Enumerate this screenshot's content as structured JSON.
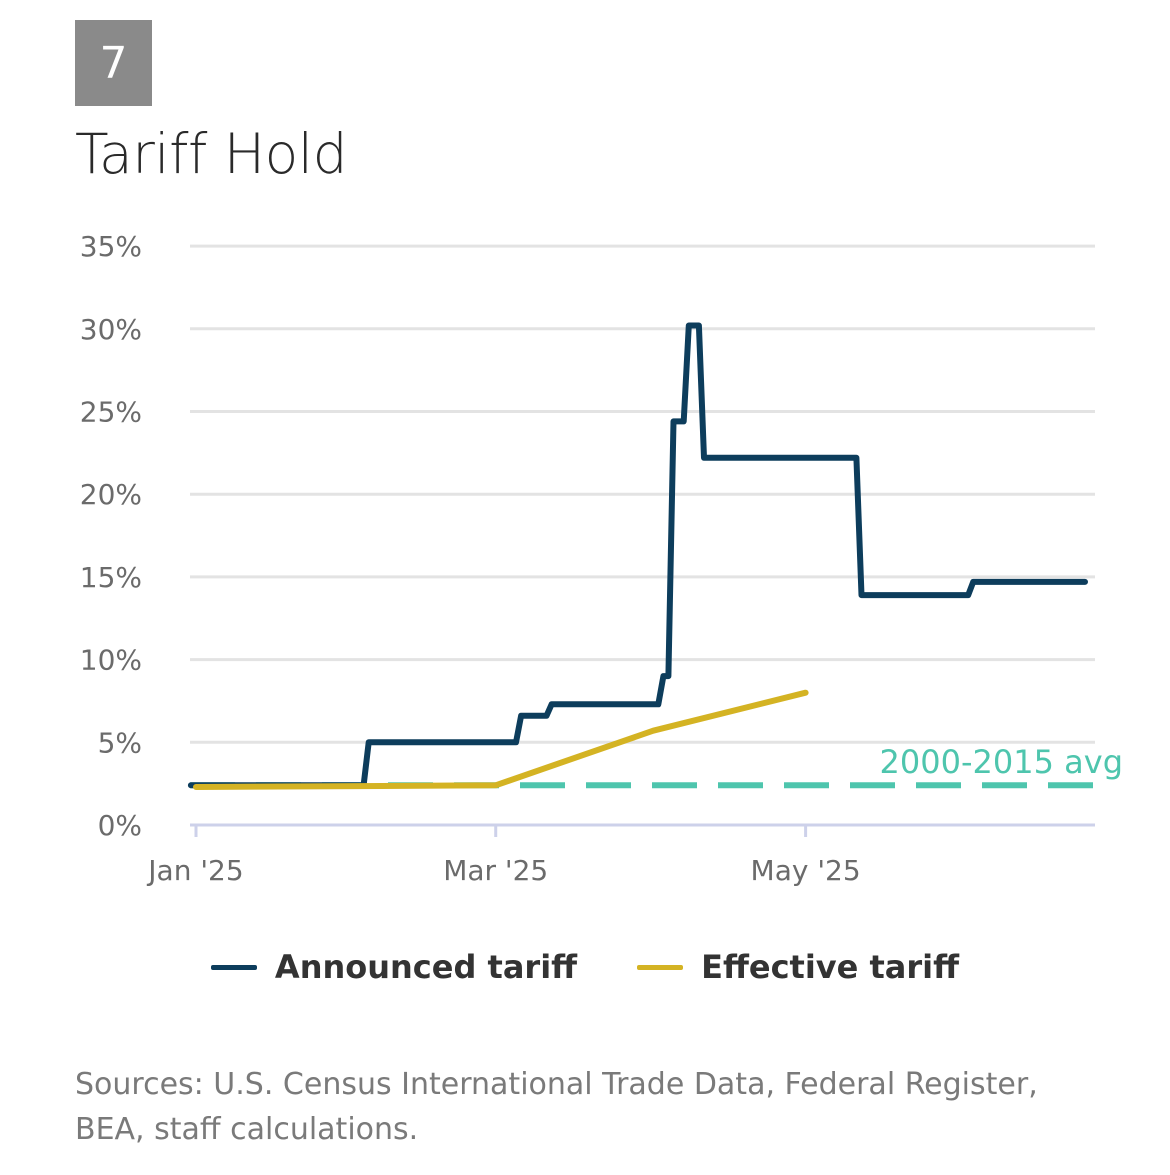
{
  "header": {
    "number": "7",
    "title": "Tariff Hold"
  },
  "chart_data": {
    "type": "line",
    "title": "Tariff Hold",
    "xlabel": "",
    "ylabel": "",
    "x_unit": "days since Jan 1 2025",
    "xlim": [
      -1,
      178
    ],
    "ylim": [
      0,
      35
    ],
    "yticks": [
      0,
      5,
      10,
      15,
      20,
      25,
      30,
      35
    ],
    "ytick_labels": [
      "0%",
      "5%",
      "10%",
      "15%",
      "20%",
      "25%",
      "30%",
      "35%"
    ],
    "xticks": [
      0,
      59,
      120
    ],
    "xtick_labels": [
      "Jan '25",
      "Mar '25",
      "May '25"
    ],
    "grid": true,
    "legend_position": "bottom",
    "series": [
      {
        "name": "Announced tariff",
        "color": "#0d3d5c",
        "points": [
          [
            -1,
            2.4
          ],
          [
            33,
            2.4
          ],
          [
            34,
            5.0
          ],
          [
            63,
            5.0
          ],
          [
            64,
            6.6
          ],
          [
            69,
            6.6
          ],
          [
            70,
            7.3
          ],
          [
            91,
            7.3
          ],
          [
            92,
            9.0
          ],
          [
            93,
            9.0
          ],
          [
            94,
            24.4
          ],
          [
            96,
            24.4
          ],
          [
            97,
            30.2
          ],
          [
            99,
            30.2
          ],
          [
            100,
            22.2
          ],
          [
            130,
            22.2
          ],
          [
            131,
            13.9
          ],
          [
            152,
            13.9
          ],
          [
            153,
            14.7
          ],
          [
            175,
            14.7
          ]
        ]
      },
      {
        "name": "Effective tariff",
        "color": "#d4b323",
        "points": [
          [
            0,
            2.3
          ],
          [
            59,
            2.4
          ],
          [
            90,
            5.7
          ],
          [
            120,
            8.0
          ]
        ]
      }
    ],
    "reference_line": {
      "label": "2000-2015 avg",
      "value": 2.4,
      "color": "#4ec5ad"
    }
  },
  "legend": [
    {
      "label": "Announced tariff",
      "color": "#0d3d5c"
    },
    {
      "label": "Effective tariff",
      "color": "#d4b323"
    }
  ],
  "source": "Sources: U.S. Census International Trade Data, Federal Register, BEA, staff calculations."
}
